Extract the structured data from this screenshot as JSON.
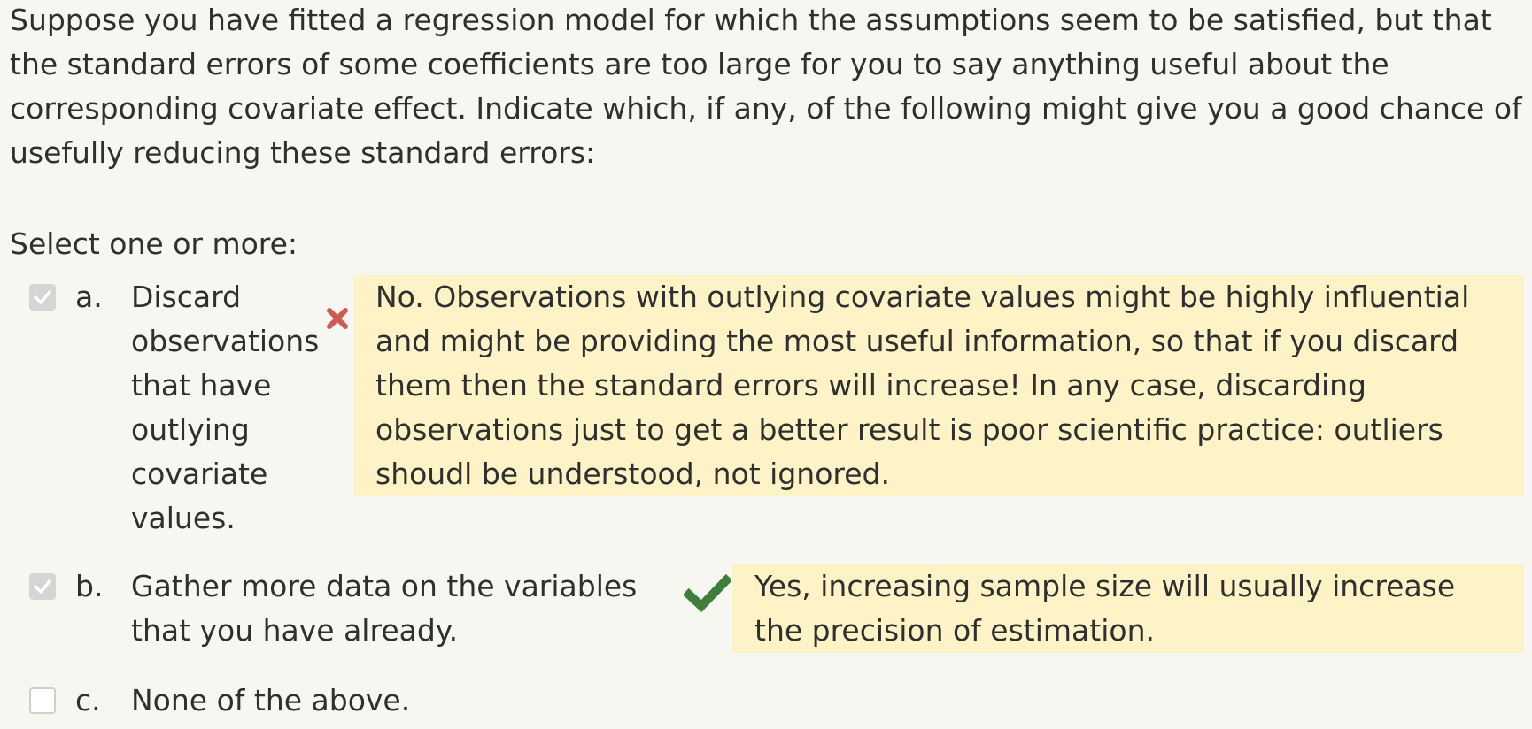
{
  "question": {
    "text": "Suppose you have fitted a regression model for which the assumptions seem to be satisfied, but that the standard errors of some coefficients are too large for you to say anything useful about the corresponding covariate effect. Indicate which, if any, of the following might give you a good chance of usefully reducing these standard errors:",
    "prompt": "Select one or more:"
  },
  "answers": [
    {
      "letter": "a.",
      "checked": true,
      "text": "Discard observations that have outlying covariate values.",
      "result": "incorrect",
      "result_icon": "cross-icon",
      "feedback": "No. Observations with outlying covariate values might be highly influential and might be providing the most useful information, so that if you discard them then the standard errors will increase! In any case, discarding observations just to get a better result is poor scientific practice: outliers shoudl be understood, not ignored."
    },
    {
      "letter": "b.",
      "checked": true,
      "text": "Gather more data on the variables that you have already.",
      "result": "correct",
      "result_icon": "check-icon",
      "feedback": "Yes, increasing sample size will usually increase the precision of estimation."
    },
    {
      "letter": "c.",
      "checked": false,
      "text": "None of the above."
    }
  ],
  "colors": {
    "background": "#f7f7f2",
    "text": "#2f2f2f",
    "feedback_background": "#fdf3c6",
    "incorrect": "#cc5b52",
    "correct": "#3f7d3a",
    "checkbox_checked": "#d5d5d5"
  }
}
